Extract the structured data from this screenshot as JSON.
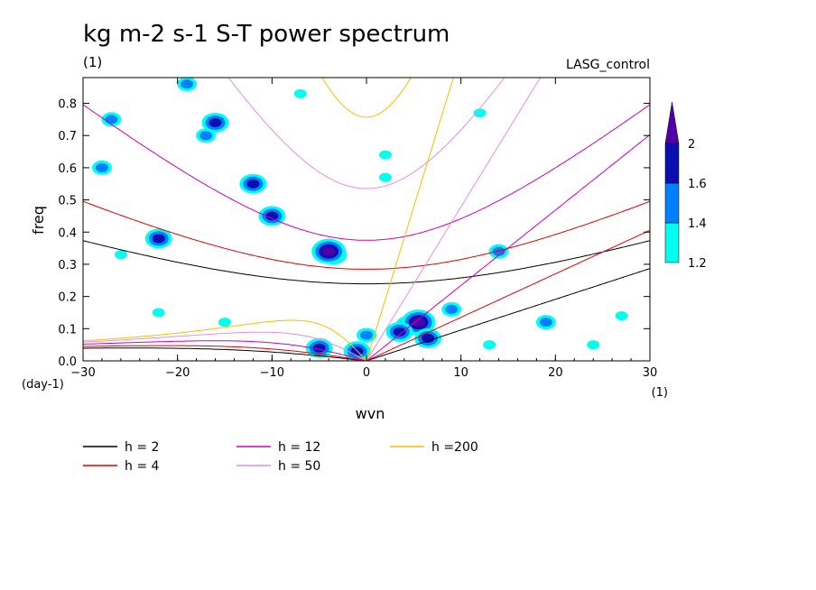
{
  "chart_data": {
    "type": "heatmap",
    "title": "kg m-2 s-1 S-T power spectrum",
    "subtitle_left": "(1)",
    "subtitle_right": "LASG_control",
    "xlabel": "wvn",
    "ylabel": "freq",
    "x_unit": "(1)",
    "y_unit": "(day-1)",
    "xlim": [
      -30,
      30
    ],
    "ylim": [
      0,
      0.88
    ],
    "x_ticks": [
      -30,
      -20,
      -10,
      0,
      10,
      20,
      30
    ],
    "y_ticks": [
      0,
      0.1,
      0.2,
      0.3,
      0.4,
      0.5,
      0.6,
      0.7,
      0.8
    ],
    "colorbar": {
      "levels": [
        1.2,
        1.4,
        1.6,
        2
      ],
      "labels": [
        "1.2",
        "1.4",
        "1.6",
        "2"
      ],
      "colors": [
        "#00ffee",
        "#0080ff",
        "#0a10b0",
        "#5000a8"
      ]
    },
    "blobs": [
      {
        "x": 4.5,
        "y": 0.11,
        "level": 3
      },
      {
        "x": 5.5,
        "y": 0.12,
        "level": 4
      },
      {
        "x": 3.5,
        "y": 0.09,
        "level": 3
      },
      {
        "x": 6.5,
        "y": 0.07,
        "level": 3
      },
      {
        "x": -3.5,
        "y": 0.33,
        "level": 3
      },
      {
        "x": -4,
        "y": 0.34,
        "level": 4
      },
      {
        "x": -5,
        "y": 0.04,
        "level": 3
      },
      {
        "x": -1,
        "y": 0.03,
        "level": 3
      },
      {
        "x": -10,
        "y": 0.45,
        "level": 3
      },
      {
        "x": -16,
        "y": 0.74,
        "level": 3
      },
      {
        "x": -17,
        "y": 0.7,
        "level": 2
      },
      {
        "x": -12,
        "y": 0.55,
        "level": 3
      },
      {
        "x": -19,
        "y": 0.86,
        "level": 2
      },
      {
        "x": -27,
        "y": 0.75,
        "level": 2
      },
      {
        "x": -22,
        "y": 0.38,
        "level": 3
      },
      {
        "x": -28,
        "y": 0.6,
        "level": 2
      },
      {
        "x": 0,
        "y": 0.08,
        "level": 2
      },
      {
        "x": -26,
        "y": 0.33,
        "level": 1
      },
      {
        "x": -22,
        "y": 0.15,
        "level": 1
      },
      {
        "x": -15,
        "y": 0.12,
        "level": 1
      },
      {
        "x": 9,
        "y": 0.16,
        "level": 2
      },
      {
        "x": 14,
        "y": 0.34,
        "level": 2
      },
      {
        "x": 19,
        "y": 0.12,
        "level": 2
      },
      {
        "x": 13,
        "y": 0.05,
        "level": 1
      },
      {
        "x": 24,
        "y": 0.05,
        "level": 1
      },
      {
        "x": 2,
        "y": 0.64,
        "level": 1
      },
      {
        "x": 27,
        "y": 0.14,
        "level": 1
      },
      {
        "x": -7,
        "y": 0.83,
        "level": 1
      },
      {
        "x": 12,
        "y": 0.77,
        "level": 1
      },
      {
        "x": 2,
        "y": 0.57,
        "level": 1
      }
    ],
    "curves": [
      {
        "name": "h =  2",
        "h": 2,
        "color": "#000000"
      },
      {
        "name": "h = 4",
        "h": 4,
        "color": "#e00000"
      },
      {
        "name": "h = 12",
        "h": 12,
        "color": "#d000b0"
      },
      {
        "name": "h = 50",
        "h": 50,
        "color": "#e090e0"
      },
      {
        "name": "h =200",
        "h": 200,
        "color": "#f0c000"
      }
    ]
  }
}
